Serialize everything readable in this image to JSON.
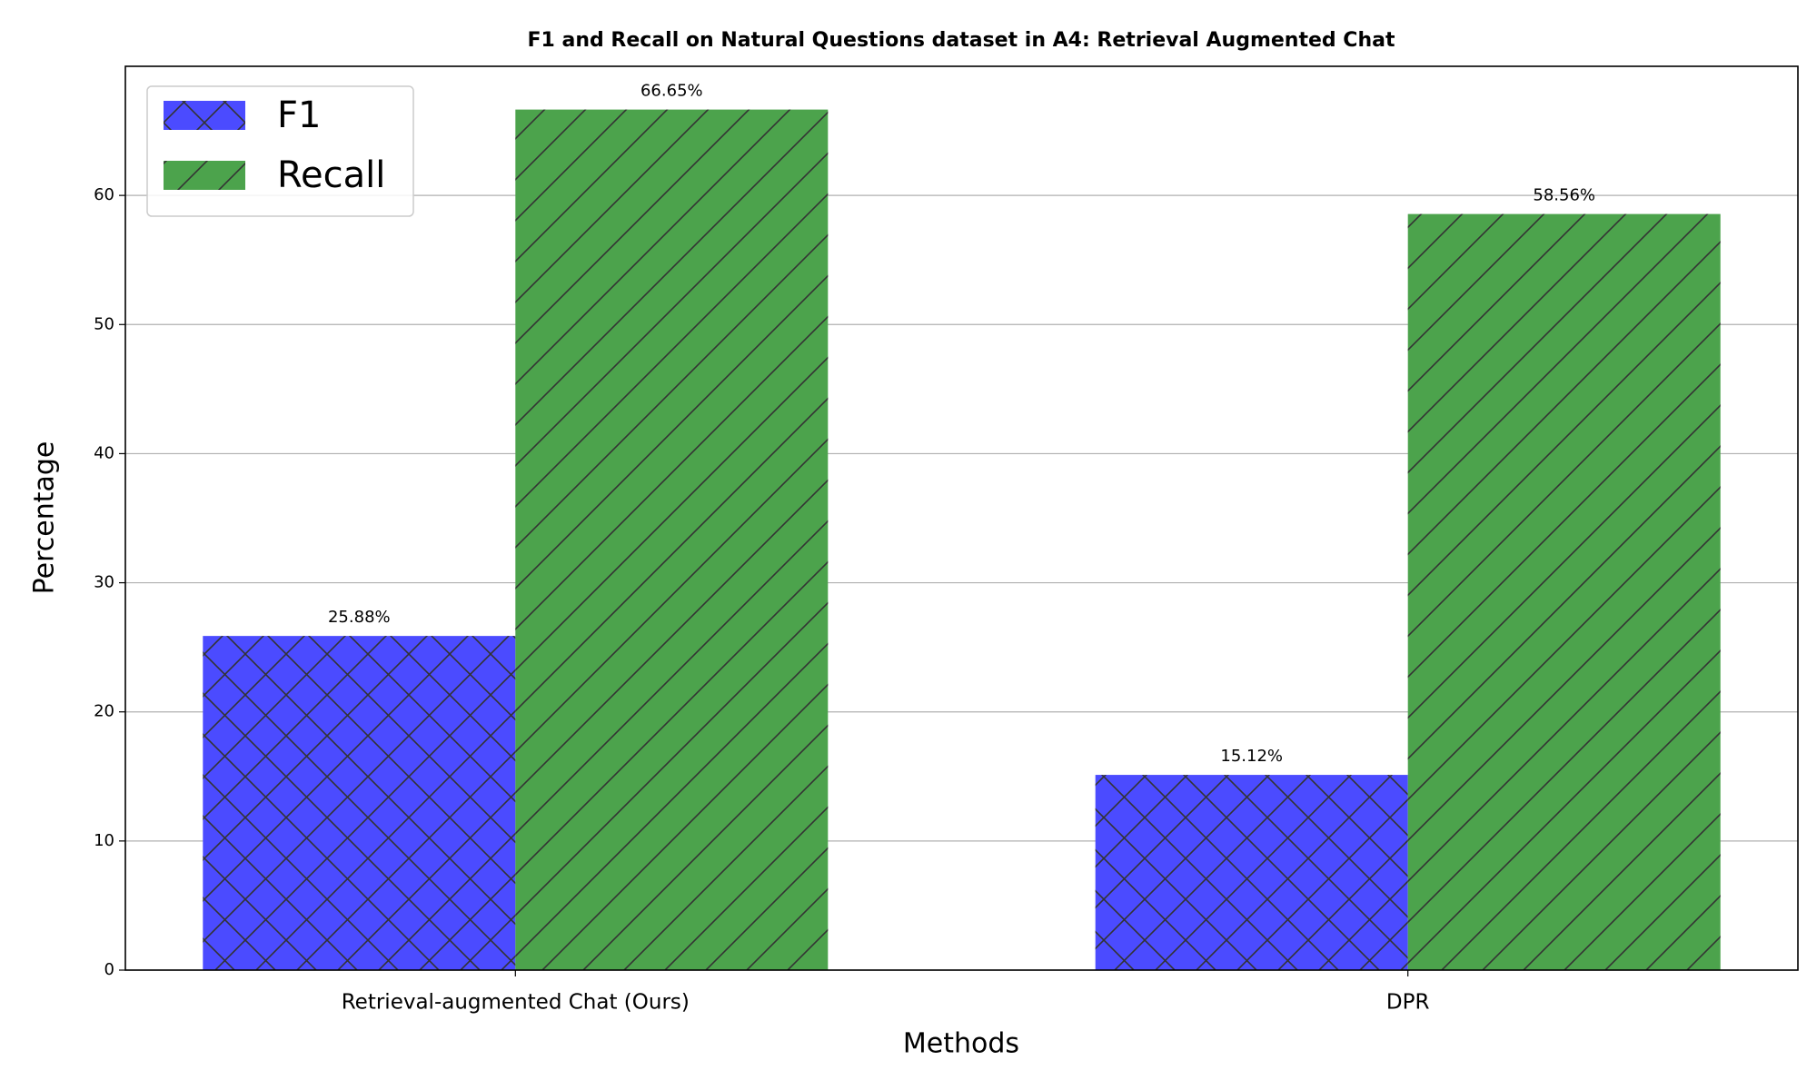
{
  "chart_data": {
    "type": "bar",
    "title": "F1 and Recall on Natural Questions dataset in A4: Retrieval Augmented Chat",
    "x_label": "Methods",
    "y_label": "Percentage",
    "categories": [
      "Retrieval-augmented Chat (Ours)",
      "DPR"
    ],
    "series": [
      {
        "name": "F1",
        "color": "#4b4bff",
        "hatch": "x",
        "values": [
          25.88,
          15.12
        ],
        "value_labels": [
          "25.88%",
          "15.12%"
        ]
      },
      {
        "name": "Recall",
        "color": "#4ca34c",
        "hatch": "/",
        "values": [
          66.65,
          58.56
        ],
        "value_labels": [
          "66.65%",
          "58.56%"
        ]
      }
    ],
    "ylim": [
      0,
      70
    ],
    "yticks": [
      0,
      10,
      20,
      30,
      40,
      50,
      60
    ],
    "grid": true,
    "legend": "upper left"
  }
}
